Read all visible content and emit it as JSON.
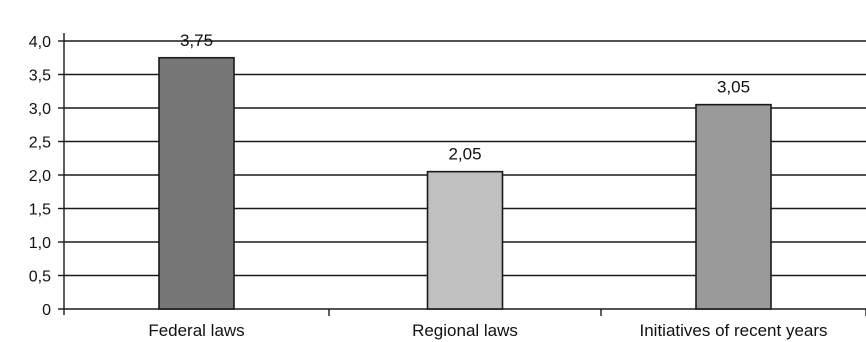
{
  "chart_data": {
    "type": "bar",
    "categories": [
      "Federal laws",
      "Regional laws",
      "Initiatives of recent years"
    ],
    "values": [
      3.75,
      2.05,
      3.05
    ],
    "value_labels": [
      "3,75",
      "2,05",
      "3,05"
    ],
    "bar_colors": [
      "#777777",
      "#c0c0c0",
      "#9a9a9a"
    ],
    "ylim": [
      0,
      4
    ],
    "yticks": [
      0,
      0.5,
      1,
      1.5,
      2,
      2.5,
      3,
      3.5,
      4
    ],
    "ytick_labels": [
      "0",
      "0,5",
      "1,0",
      "1,5",
      "2,0",
      "2,5",
      "3,0",
      "3,5",
      "4,0"
    ],
    "grid": true,
    "title": "",
    "xlabel": "",
    "ylabel": ""
  }
}
